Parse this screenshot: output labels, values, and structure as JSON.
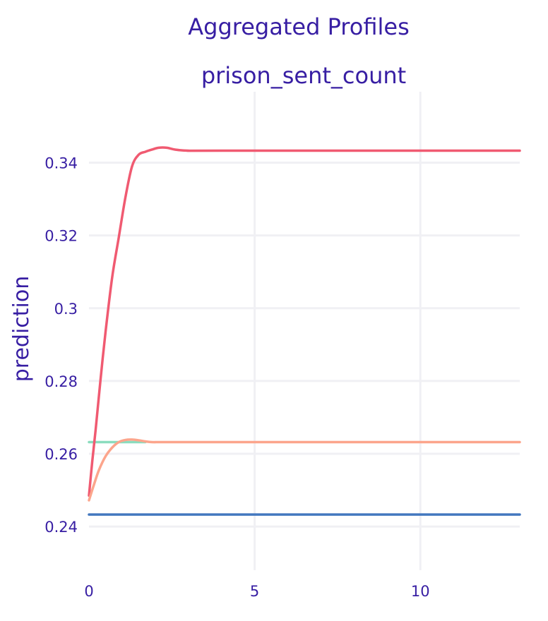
{
  "chart_data": {
    "type": "line",
    "title": "Aggregated Profiles",
    "subtitle": "prison_sent_count",
    "xlabel": "",
    "ylabel": "prediction",
    "xlim": [
      0,
      13
    ],
    "ylim": [
      0.228,
      0.3595
    ],
    "x_ticks": [
      0,
      5,
      10
    ],
    "x_tick_labels": [
      "0",
      "5",
      "10"
    ],
    "y_ticks": [
      0.24,
      0.26,
      0.28,
      0.3,
      0.32,
      0.34
    ],
    "y_tick_labels": [
      "0.24",
      "0.26",
      "0.28",
      "0.3",
      "0.32",
      "0.34"
    ],
    "grid": true,
    "series": [
      {
        "color": "#4378bf",
        "x": [
          0,
          13
        ],
        "y": [
          0.2433,
          0.2433
        ]
      },
      {
        "color": "#8bdcbe",
        "x": [
          0,
          1.7
        ],
        "y": [
          0.2632,
          0.2632
        ]
      },
      {
        "color": "#f05a71",
        "x": [
          0,
          0.1,
          0.2,
          0.35,
          0.5,
          0.7,
          0.9,
          1.1,
          1.3,
          1.5,
          1.7,
          1.9,
          2.1,
          2.35,
          2.6,
          3.0,
          4.0,
          13
        ],
        "y": [
          0.2485,
          0.258,
          0.2665,
          0.2805,
          0.2935,
          0.3085,
          0.3195,
          0.3305,
          0.339,
          0.3422,
          0.343,
          0.3436,
          0.3441,
          0.3441,
          0.3436,
          0.3433,
          0.3433,
          0.3433
        ]
      },
      {
        "color": "#fca58c",
        "x": [
          0,
          0.15,
          0.3,
          0.5,
          0.7,
          0.9,
          1.1,
          1.3,
          1.5,
          1.7,
          1.9,
          2.2,
          3.0,
          13
        ],
        "y": [
          0.2472,
          0.2515,
          0.2555,
          0.2593,
          0.2617,
          0.2632,
          0.2638,
          0.2639,
          0.2637,
          0.2634,
          0.2632,
          0.2632,
          0.2632,
          0.2632
        ]
      }
    ]
  }
}
